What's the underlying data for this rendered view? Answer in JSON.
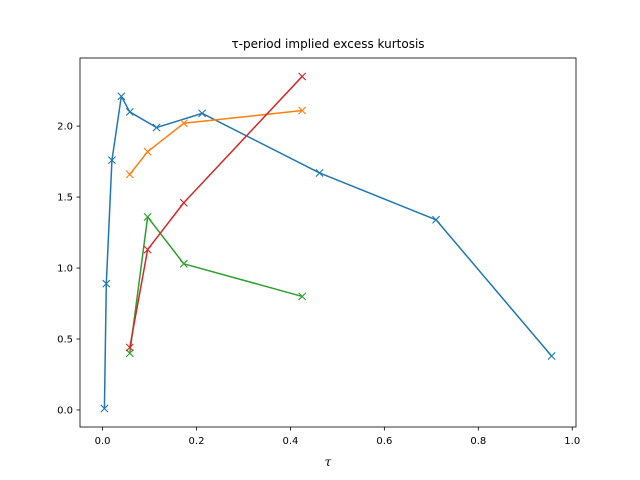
{
  "chart_data": {
    "type": "line",
    "title": "τ-period implied excess kurtosis",
    "xlabel": "τ",
    "ylabel": "",
    "xlim": [
      -0.048,
      1.008
    ],
    "ylim": [
      -0.12,
      2.48
    ],
    "xticks": [
      0.0,
      0.2,
      0.4,
      0.6,
      0.8,
      1.0
    ],
    "xtick_labels": [
      "0.0",
      "0.2",
      "0.4",
      "0.6",
      "0.8",
      "1.0"
    ],
    "yticks": [
      0.0,
      0.5,
      1.0,
      1.5,
      2.0
    ],
    "ytick_labels": [
      "0.0",
      "0.5",
      "1.0",
      "1.5",
      "2.0"
    ],
    "grid": false,
    "marker": "x",
    "series": [
      {
        "color": "#1f77b4",
        "x": [
          0.004,
          0.008,
          0.02,
          0.04,
          0.058,
          0.115,
          0.212,
          0.462,
          0.71,
          0.956
        ],
        "y": [
          0.01,
          0.89,
          1.76,
          2.21,
          2.1,
          1.99,
          2.09,
          1.67,
          1.34,
          0.38
        ]
      },
      {
        "color": "#ff7f0e",
        "x": [
          0.058,
          0.096,
          0.173,
          0.425
        ],
        "y": [
          1.66,
          1.82,
          2.02,
          2.11
        ]
      },
      {
        "color": "#2ca02c",
        "x": [
          0.058,
          0.096,
          0.173,
          0.425
        ],
        "y": [
          0.4,
          1.36,
          1.03,
          0.8
        ]
      },
      {
        "color": "#d62728",
        "x": [
          0.058,
          0.096,
          0.173,
          0.425
        ],
        "y": [
          0.44,
          1.13,
          1.46,
          2.35
        ]
      }
    ]
  }
}
